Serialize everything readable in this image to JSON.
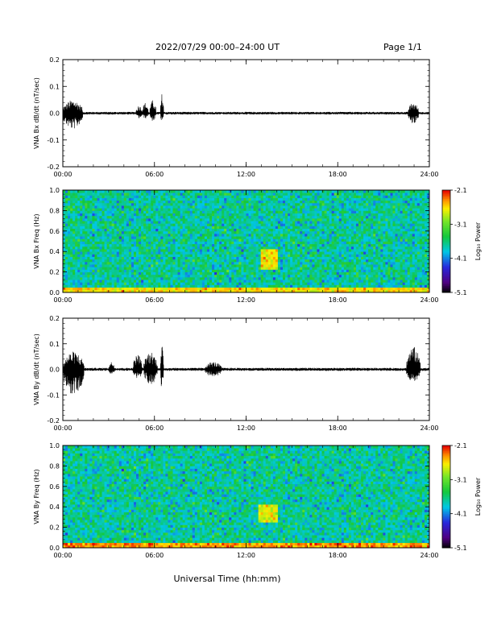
{
  "header": {
    "title": "2022/07/29  00:00–24:00 UT",
    "page": "Page 1/1"
  },
  "xaxis": {
    "label": "Universal Time (hh:mm)",
    "ticks": [
      "00:00",
      "06:00",
      "12:00",
      "18:00",
      "24:00"
    ],
    "range_hours": [
      0,
      24
    ]
  },
  "colorbar": {
    "label": "Log₁₀ Power",
    "ticks": [
      "-2.1",
      "-3.1",
      "-4.1",
      "-5.1"
    ],
    "range": [
      -5.1,
      -2.1
    ],
    "scale": "rainbow: black-purple-blue-cyan-green-yellow-orange-red"
  },
  "chart_data": [
    {
      "type": "line",
      "ylabel": "VNA Bx dB/dt (nT/sec)",
      "ylim": [
        -0.2,
        0.2
      ],
      "yticks": [
        "0.2",
        "0.1",
        "0.0",
        "-0.1",
        "-0.2"
      ],
      "xlim_hours": [
        0,
        24
      ],
      "color": "#000000",
      "baseline_amplitude": 0.005,
      "bursts": [
        {
          "start_hour": 0.0,
          "end_hour": 1.3,
          "peak": 0.05,
          "trough": -0.06
        },
        {
          "start_hour": 4.8,
          "end_hour": 5.2,
          "peak": 0.03,
          "trough": -0.02
        },
        {
          "start_hour": 5.2,
          "end_hour": 5.6,
          "peak": 0.04,
          "trough": -0.02
        },
        {
          "start_hour": 5.7,
          "end_hour": 6.1,
          "peak": 0.05,
          "trough": -0.03
        },
        {
          "start_hour": 6.4,
          "end_hour": 6.6,
          "peak": 0.075,
          "trough": -0.04
        },
        {
          "start_hour": 22.6,
          "end_hour": 23.3,
          "peak": 0.04,
          "trough": -0.04
        }
      ]
    },
    {
      "type": "heatmap",
      "ylabel": "VNA Bx Freq (Hz)",
      "ylim": [
        0.0,
        1.0
      ],
      "yticks": [
        "1.0",
        "0.8",
        "0.6",
        "0.4",
        "0.2",
        "0.0"
      ],
      "xlim_hours": [
        0,
        24
      ],
      "value_range": [
        -5.1,
        -2.1
      ],
      "background_level": -3.7,
      "low_freq_band": {
        "max_freq_hz": 0.04,
        "level": -2.6
      },
      "features": [
        {
          "start_hour": 13.0,
          "end_hour": 14.0,
          "freq_low_hz": 0.22,
          "freq_high_hz": 0.42,
          "level": -2.6
        }
      ]
    },
    {
      "type": "line",
      "ylabel": "VNA By dB/dt (nT/sec)",
      "ylim": [
        -0.2,
        0.2
      ],
      "yticks": [
        "0.2",
        "0.1",
        "0.0",
        "-0.1",
        "-0.2"
      ],
      "xlim_hours": [
        0,
        24
      ],
      "color": "#000000",
      "baseline_amplitude": 0.006,
      "bursts": [
        {
          "start_hour": 0.0,
          "end_hour": 1.4,
          "peak": 0.07,
          "trough": -0.1
        },
        {
          "start_hour": 3.0,
          "end_hour": 3.4,
          "peak": 0.03,
          "trough": -0.02
        },
        {
          "start_hour": 4.6,
          "end_hour": 5.2,
          "peak": 0.06,
          "trough": -0.04
        },
        {
          "start_hour": 5.3,
          "end_hour": 6.2,
          "peak": 0.07,
          "trough": -0.06
        },
        {
          "start_hour": 6.4,
          "end_hour": 6.6,
          "peak": 0.09,
          "trough": -0.09
        },
        {
          "start_hour": 9.3,
          "end_hour": 10.4,
          "peak": 0.03,
          "trough": -0.03
        },
        {
          "start_hour": 22.5,
          "end_hour": 23.4,
          "peak": 0.09,
          "trough": -0.05
        }
      ]
    },
    {
      "type": "heatmap",
      "ylabel": "VNA By Freq (Hz)",
      "ylim": [
        0.0,
        1.0
      ],
      "yticks": [
        "1.0",
        "0.8",
        "0.6",
        "0.4",
        "0.2",
        "0.0"
      ],
      "xlim_hours": [
        0,
        24
      ],
      "value_range": [
        -5.1,
        -2.1
      ],
      "background_level": -3.7,
      "low_freq_band": {
        "max_freq_hz": 0.04,
        "level": -2.4
      },
      "features": [
        {
          "start_hour": 12.8,
          "end_hour": 14.0,
          "freq_low_hz": 0.25,
          "freq_high_hz": 0.42,
          "level": -2.7
        }
      ]
    }
  ]
}
